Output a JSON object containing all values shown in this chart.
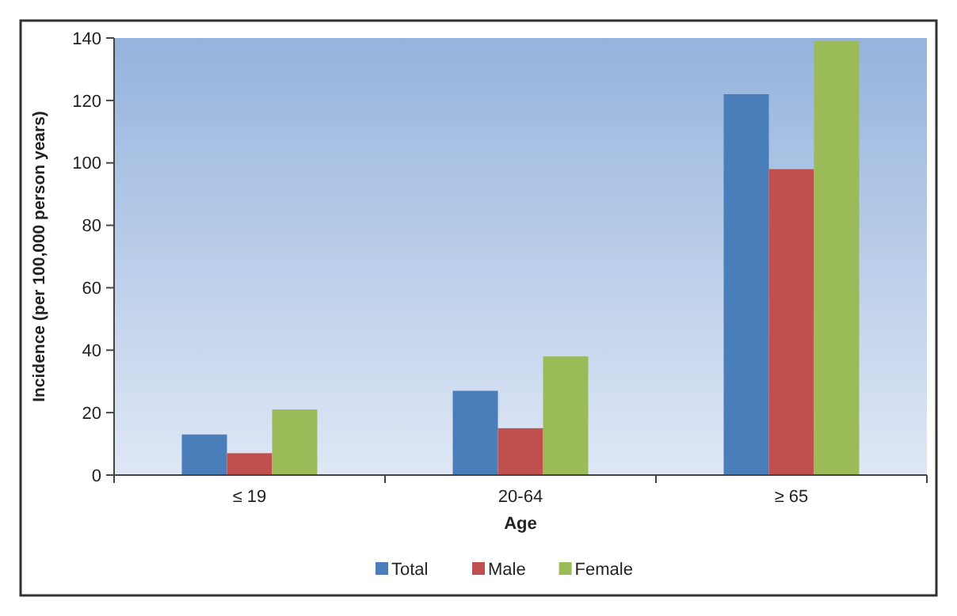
{
  "chart_data": {
    "type": "bar",
    "xlabel": "Age",
    "ylabel": "Incidence (per 100,000 person years)",
    "categories": [
      "≤ 19",
      "20-64",
      "≥ 65"
    ],
    "series": [
      {
        "name": "Total",
        "color": "#4a7ebb",
        "values": [
          13,
          27,
          122
        ]
      },
      {
        "name": "Male",
        "color": "#c0504d",
        "values": [
          7,
          15,
          98
        ]
      },
      {
        "name": "Female",
        "color": "#9bbb59",
        "values": [
          21,
          38,
          139
        ]
      }
    ],
    "ylim": [
      0,
      140
    ],
    "yticks": [
      0,
      20,
      40,
      60,
      80,
      100,
      120,
      140
    ],
    "grid": false,
    "legend": "bottom"
  }
}
